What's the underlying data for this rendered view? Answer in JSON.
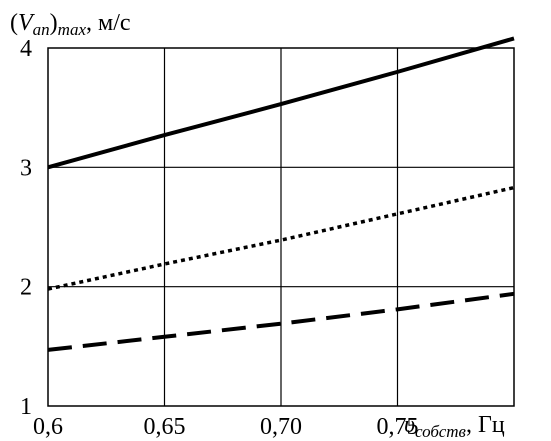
{
  "chart_data": {
    "type": "line",
    "title": "",
    "ylabel": {
      "open": "(",
      "var": "V",
      "var_sub": "an",
      "close": ")",
      "max_sub": "max",
      "unit": ", м/с"
    },
    "xlabel": {
      "var": "υ",
      "var_sub": "собств",
      "unit": ", Гц"
    },
    "xlim": [
      0.6,
      0.8
    ],
    "ylim": [
      1,
      4
    ],
    "x_ticks": [
      {
        "value": 0.6,
        "label": "0,6"
      },
      {
        "value": 0.65,
        "label": "0,65"
      },
      {
        "value": 0.7,
        "label": "0,70"
      },
      {
        "value": 0.75,
        "label": "0,75"
      }
    ],
    "y_ticks": [
      {
        "value": 1,
        "label": "1"
      },
      {
        "value": 2,
        "label": "2"
      },
      {
        "value": 3,
        "label": "3"
      },
      {
        "value": 4,
        "label": "4"
      }
    ],
    "grid": true,
    "series": [
      {
        "style": "solid",
        "color": "#000000",
        "x": [
          0.6,
          0.65,
          0.7,
          0.75,
          0.8
        ],
        "y": [
          3.0,
          3.27,
          3.53,
          3.8,
          4.08
        ]
      },
      {
        "style": "dotted",
        "color": "#000000",
        "x": [
          0.6,
          0.65,
          0.7,
          0.75,
          0.8
        ],
        "y": [
          1.98,
          2.19,
          2.39,
          2.61,
          2.83
        ]
      },
      {
        "style": "dashed",
        "color": "#000000",
        "x": [
          0.6,
          0.65,
          0.7,
          0.75,
          0.8
        ],
        "y": [
          1.47,
          1.58,
          1.69,
          1.81,
          1.94
        ]
      }
    ]
  }
}
